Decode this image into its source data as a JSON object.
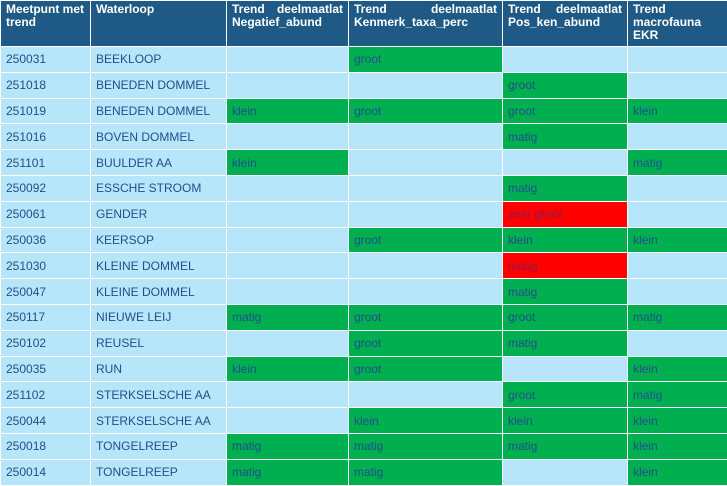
{
  "table": {
    "header": [
      "Meetpunt met trend",
      "Waterloop",
      "Trend deelmaatlat Negatief_abund",
      "Trend deelmaatlat Kenmerk_taxa_perc",
      "Trend deelmaatlat Pos_ken_abund",
      "Trend macrofauna EKR"
    ],
    "header_color": "#1f5a86",
    "empty_color": "#b7e6fa",
    "rows": [
      [
        "250031",
        "BEEKLOOP",
        null,
        {
          "text": "groot",
          "color": "#00b050"
        },
        null,
        null
      ],
      [
        "251018",
        "BENEDEN DOMMEL",
        null,
        null,
        {
          "text": "groot",
          "color": "#00b050"
        },
        null
      ],
      [
        "251019",
        "BENEDEN DOMMEL",
        {
          "text": "klein",
          "color": "#00b050"
        },
        {
          "text": "groot",
          "color": "#00b050"
        },
        {
          "text": "groot",
          "color": "#00b050"
        },
        {
          "text": "klein",
          "color": "#00b050"
        }
      ],
      [
        "251016",
        "BOVEN DOMMEL",
        null,
        null,
        {
          "text": "matig",
          "color": "#00b050"
        },
        null
      ],
      [
        "251101",
        "BUULDER AA",
        {
          "text": "klein",
          "color": "#00b050"
        },
        null,
        null,
        {
          "text": "matig",
          "color": "#00b050"
        }
      ],
      [
        "250092",
        "ESSCHE STROOM",
        null,
        null,
        {
          "text": "matig",
          "color": "#00b050"
        },
        null
      ],
      [
        "250061",
        "GENDER",
        null,
        null,
        {
          "text": "zeer groot",
          "color": "#ff0000"
        },
        null
      ],
      [
        "250036",
        "KEERSOP",
        null,
        {
          "text": "groot",
          "color": "#00b050"
        },
        {
          "text": "klein",
          "color": "#00b050"
        },
        {
          "text": "klein",
          "color": "#00b050"
        }
      ],
      [
        "251030",
        "KLEINE DOMMEL",
        null,
        null,
        {
          "text": "matig",
          "color": "#ff0000"
        },
        null
      ],
      [
        "250047",
        "KLEINE DOMMEL",
        null,
        null,
        {
          "text": "matig",
          "color": "#00b050"
        },
        null
      ],
      [
        "250117",
        "NIEUWE LEIJ",
        {
          "text": "matig",
          "color": "#00b050"
        },
        {
          "text": "groot",
          "color": "#00b050"
        },
        {
          "text": "groot",
          "color": "#00b050"
        },
        {
          "text": "matig",
          "color": "#00b050"
        }
      ],
      [
        "250102",
        "REUSEL",
        null,
        {
          "text": "groot",
          "color": "#00b050"
        },
        {
          "text": "matig",
          "color": "#00b050"
        },
        null
      ],
      [
        "250035",
        "RUN",
        {
          "text": "klein",
          "color": "#00b050"
        },
        {
          "text": "groot",
          "color": "#00b050"
        },
        null,
        {
          "text": "klein",
          "color": "#00b050"
        }
      ],
      [
        "251102",
        "STERKSELSCHE AA",
        null,
        null,
        {
          "text": "groot",
          "color": "#00b050"
        },
        {
          "text": "matig",
          "color": "#00b050"
        }
      ],
      [
        "250044",
        "STERKSELSCHE AA",
        null,
        {
          "text": "klein",
          "color": "#00b050"
        },
        {
          "text": "klein",
          "color": "#00b050"
        },
        {
          "text": "klein",
          "color": "#00b050"
        }
      ],
      [
        "250018",
        "TONGELREEP",
        {
          "text": "matig",
          "color": "#00b050"
        },
        {
          "text": "matig",
          "color": "#00b050"
        },
        {
          "text": "matig",
          "color": "#00b050"
        },
        {
          "text": "klein",
          "color": "#00b050"
        }
      ],
      [
        "250014",
        "TONGELREEP",
        {
          "text": "matig",
          "color": "#00b050"
        },
        {
          "text": "matig",
          "color": "#00b050"
        },
        null,
        {
          "text": "klein",
          "color": "#00b050"
        }
      ]
    ]
  }
}
